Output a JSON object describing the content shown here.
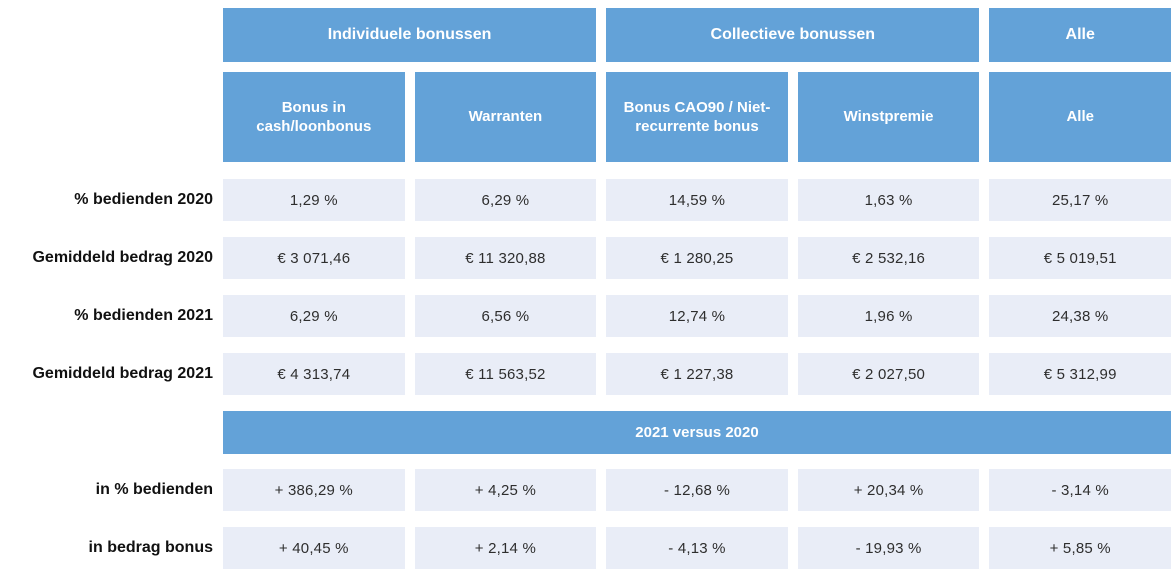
{
  "colors": {
    "header_blue": "#63A2D8",
    "cell_bg": "#E9EDF7",
    "header_text": "#FFFFFF",
    "cell_text": "#2E2E2E"
  },
  "chart_data": {
    "type": "table",
    "group_headers": [
      {
        "label": "Individuele bonussen",
        "span": 2
      },
      {
        "label": "Collectieve bonussen",
        "span": 2
      },
      {
        "label": "Alle",
        "span": 1
      }
    ],
    "column_headers": [
      "Bonus in cash/loonbonus",
      "Warranten",
      "Bonus CAO90 / Niet-recurrente bonus",
      "Winstpremie",
      "Alle"
    ],
    "rows": [
      {
        "label": "% bedienden 2020",
        "values": [
          "1,29 %",
          "6,29 %",
          "14,59 %",
          "1,63 %",
          "25,17 %"
        ]
      },
      {
        "label": "Gemiddeld bedrag 2020",
        "values": [
          "€ 3 071,46",
          "€ 11 320,88",
          "€ 1 280,25",
          "€ 2 532,16",
          "€ 5 019,51"
        ]
      },
      {
        "label": "% bedienden 2021",
        "values": [
          "6,29 %",
          "6,56 %",
          "12,74 %",
          "1,96 %",
          "24,38 %"
        ]
      },
      {
        "label": "Gemiddeld bedrag 2021",
        "values": [
          "€ 4 313,74",
          "€ 11 563,52",
          "€ 1 227,38",
          "€ 2 027,50",
          "€ 5 312,99"
        ]
      }
    ],
    "comparison_band": "2021 versus 2020",
    "comparison_rows": [
      {
        "label": "in % bedienden",
        "values": [
          "+ 386,29 %",
          "+ 4,25 %",
          "- 12,68 %",
          "+ 20,34 %",
          "- 3,14 %"
        ]
      },
      {
        "label": "in bedrag bonus",
        "values": [
          "+ 40,45 %",
          "+ 2,14 %",
          "- 4,13 %",
          "- 19,93 %",
          "+ 5,85 %"
        ]
      }
    ]
  }
}
